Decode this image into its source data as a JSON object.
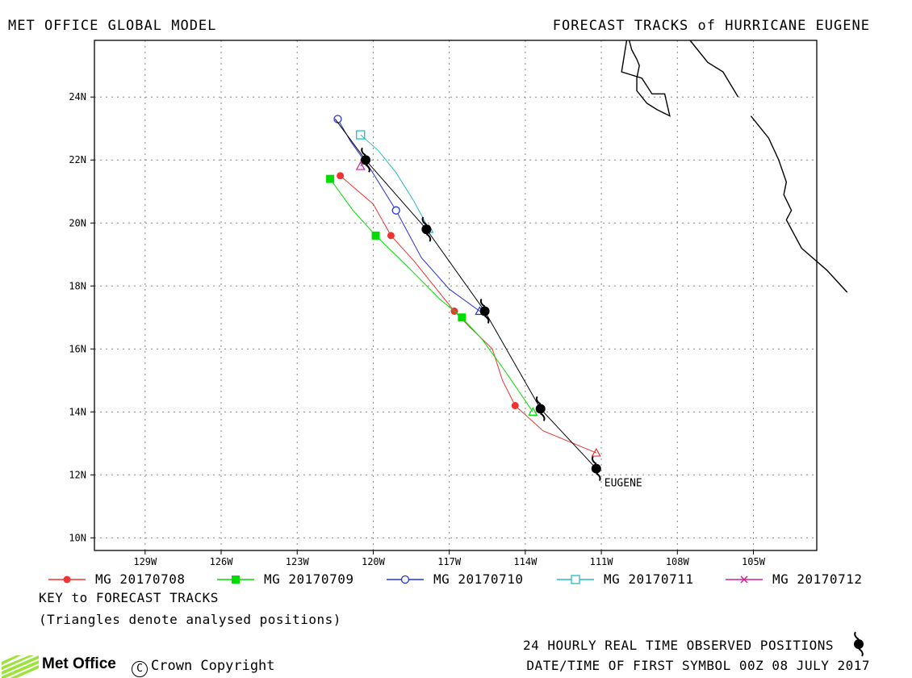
{
  "header": {
    "left": "MET OFFICE GLOBAL MODEL",
    "right": "FORECAST TRACKS of HURRICANE EUGENE"
  },
  "chart_data": {
    "type": "line",
    "xlim": [
      -131,
      -102.5
    ],
    "ylim": [
      9.6,
      25.8
    ],
    "x_ticks": [
      -129,
      -126,
      -123,
      -120,
      -117,
      -114,
      -111,
      -108,
      -105
    ],
    "x_tick_labels": [
      "129W",
      "126W",
      "123W",
      "120W",
      "117W",
      "114W",
      "111W",
      "108W",
      "105W"
    ],
    "y_ticks": [
      10,
      12,
      14,
      16,
      18,
      20,
      22,
      24
    ],
    "y_tick_labels": [
      "10N",
      "12N",
      "14N",
      "16N",
      "18N",
      "20N",
      "22N",
      "24N"
    ],
    "grid": true,
    "storm_label": "EUGENE",
    "observed_track": {
      "lon": [
        -111.2,
        -113.4,
        -115.6,
        -117.9,
        -120.3,
        -121.5
      ],
      "lat": [
        12.2,
        14.1,
        17.2,
        19.8,
        22.0,
        23.3
      ],
      "symbol_lon": [
        -111.2,
        -113.4,
        -115.6,
        -117.9,
        -120.3
      ],
      "symbol_lat": [
        12.2,
        14.1,
        17.2,
        19.8,
        22.0
      ]
    },
    "series": [
      {
        "name": "MG 20170708",
        "color": "#ee3333",
        "marker": "filled-circle",
        "lon": [
          -111.2,
          -112.4,
          -113.3,
          -114.4,
          -114.9,
          -115.3,
          -116.2,
          -116.8,
          -117.6,
          -118.4,
          -119.3,
          -120.0,
          -121.3
        ],
        "lat": [
          12.7,
          13.1,
          13.4,
          14.2,
          15.0,
          16.0,
          16.7,
          17.2,
          18.0,
          18.8,
          19.6,
          20.6,
          21.5
        ],
        "marker_lon": [
          -114.4,
          -116.8,
          -119.3,
          -121.3
        ],
        "marker_lat": [
          14.2,
          17.2,
          19.6,
          21.5
        ]
      },
      {
        "name": "MG 20170709",
        "color": "#00dd00",
        "marker": "filled-square",
        "lon": [
          -113.7,
          -114.8,
          -115.7,
          -116.5,
          -117.4,
          -118.5,
          -119.9,
          -120.8,
          -121.7
        ],
        "lat": [
          14.0,
          15.3,
          16.3,
          17.0,
          17.6,
          18.5,
          19.6,
          20.4,
          21.4
        ],
        "marker_lon": [
          -116.5,
          -119.9,
          -121.7
        ],
        "marker_lat": [
          17.0,
          19.6,
          21.4
        ]
      },
      {
        "name": "MG 20170710",
        "color": "#2233dd",
        "marker": "open-circle",
        "lon": [
          -115.8,
          -117.0,
          -118.1,
          -119.1,
          -120.1,
          -120.9,
          -121.4
        ],
        "lat": [
          17.2,
          17.9,
          18.9,
          20.4,
          21.7,
          22.6,
          23.3
        ],
        "marker_lon": [
          -119.1,
          -121.4
        ],
        "marker_lat": [
          20.4,
          23.3
        ]
      },
      {
        "name": "MG 20170711",
        "color": "#22bbcc",
        "marker": "open-square",
        "lon": [
          -117.8,
          -118.4,
          -119.1,
          -119.8,
          -120.5
        ],
        "lat": [
          19.8,
          20.7,
          21.6,
          22.3,
          22.8
        ],
        "marker_lon": [
          -120.5
        ],
        "marker_lat": [
          22.8
        ]
      },
      {
        "name": "MG 20170712",
        "color": "#cc2299",
        "marker": "x",
        "lon": [
          -120.3,
          -120.5
        ],
        "lat": [
          22.0,
          21.8
        ],
        "marker_lon": [],
        "marker_lat": []
      }
    ],
    "analysed_positions": [
      {
        "series": 0,
        "lon": -111.2,
        "lat": 12.7
      },
      {
        "series": 1,
        "lon": -113.7,
        "lat": 14.0
      },
      {
        "series": 2,
        "lon": -115.8,
        "lat": 17.2
      },
      {
        "series": 3,
        "lon": -117.8,
        "lat": 19.8
      },
      {
        "series": 4,
        "lon": -120.5,
        "lat": 21.8
      }
    ],
    "coastline": [
      [
        [
          -110.0,
          25.8
        ],
        [
          -110.2,
          24.8
        ],
        [
          -109.4,
          24.6
        ],
        [
          -109.0,
          24.1
        ],
        [
          -108.5,
          24.1
        ],
        [
          -108.3,
          23.4
        ],
        [
          -108.8,
          23.6
        ],
        [
          -109.2,
          23.8
        ],
        [
          -109.6,
          24.2
        ],
        [
          -109.6,
          24.6
        ],
        [
          -109.5,
          25.0
        ],
        [
          -109.6,
          25.2
        ],
        [
          -109.8,
          25.5
        ],
        [
          -109.9,
          25.8
        ]
      ],
      [
        [
          -107.5,
          25.8
        ],
        [
          -106.8,
          25.1
        ],
        [
          -106.2,
          24.8
        ],
        [
          -105.6,
          24.0
        ]
      ],
      [
        [
          -105.1,
          23.4
        ],
        [
          -104.4,
          22.7
        ],
        [
          -104.0,
          22.0
        ],
        [
          -103.7,
          21.3
        ],
        [
          -103.8,
          20.9
        ],
        [
          -103.5,
          20.4
        ],
        [
          -103.7,
          20.1
        ],
        [
          -103.1,
          19.2
        ],
        [
          -102.1,
          18.5
        ],
        [
          -101.3,
          17.8
        ]
      ]
    ]
  },
  "legend": [
    {
      "label": "MG 20170708"
    },
    {
      "label": "MG 20170709"
    },
    {
      "label": "MG 20170710"
    },
    {
      "label": "MG 20170711"
    },
    {
      "label": "MG 20170712"
    }
  ],
  "notes": {
    "key": "KEY to FORECAST TRACKS",
    "triangles": "(Triangles denote analysed positions)",
    "observed": "24 HOURLY REAL TIME OBSERVED POSITIONS",
    "first_symbol": "DATE/TIME OF FIRST SYMBOL 00Z 08 JULY 2017"
  },
  "footer": {
    "logo_text": "Met Office",
    "copyright": "Crown Copyright"
  }
}
